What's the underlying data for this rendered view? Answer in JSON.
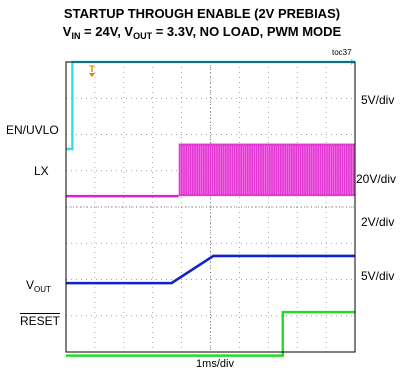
{
  "chart_data": {
    "type": "line",
    "title_line1": "STARTUP THROUGH ENABLE (2V PREBIAS)",
    "title_line2": {
      "p1": "V",
      "s1": "IN",
      "p2": " = 24V, V",
      "s2": "OUT",
      "p3": " = 3.3V, NO LOAD, PWM MODE"
    },
    "figure_tag": "toc37",
    "xlabel": "1ms/div",
    "x_divisions": 10,
    "y_divisions": 8,
    "grid": true,
    "trigger_marker": "T",
    "series": [
      {
        "name": "EN/UVLO",
        "color": "#33ddee",
        "scale": "5V/div",
        "level_before": 1.0,
        "level_after": 2.4,
        "step_at_div": 0.22
      },
      {
        "name": "LX",
        "color": "#dd22cc",
        "scale": "20V/div",
        "level_low": 0.0,
        "level_high": 1.45,
        "switching_starts_div": 3.9,
        "switching_ends_div": 10
      },
      {
        "name": "",
        "color": "#1122cc",
        "scale": "2V/div",
        "level_start": 0.0,
        "level_end": 0.75,
        "ramp_start_div": 3.65,
        "ramp_end_div": 5.1
      },
      {
        "name_main": "V",
        "name_sub": "OUT",
        "color": "#22dd22",
        "scale": "5V/div",
        "level_low": 0.0,
        "level_high": 1.2,
        "step_at_div": 7.5
      }
    ],
    "left_labels": {
      "en": "EN/UVLO",
      "lx": "LX",
      "vout_main": "V",
      "vout_sub": "OUT",
      "reset": "RESET"
    },
    "right_labels": [
      "5V/div",
      "20V/div",
      "2V/div",
      "5V/div"
    ]
  }
}
